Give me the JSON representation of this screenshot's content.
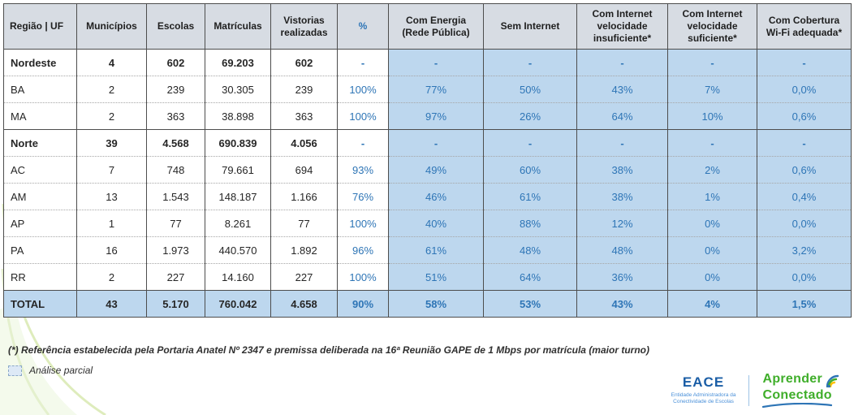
{
  "table": {
    "headers": [
      "Região | UF",
      "Municípios",
      "Escolas",
      "Matrículas",
      "Vistorias realizadas",
      "%",
      "Com Energia (Rede Pública)",
      "Sem Internet",
      "Com Internet velocidade insuficiente*",
      "Com Internet velocidade suficiente*",
      "Com Cobertura Wi-Fi adequada*"
    ],
    "rows": [
      {
        "type": "region",
        "cells": [
          "Nordeste",
          "4",
          "602",
          "69.203",
          "602",
          "-",
          "-",
          "-",
          "-",
          "-",
          "-"
        ]
      },
      {
        "type": "uf",
        "cells": [
          "BA",
          "2",
          "239",
          "30.305",
          "239",
          "100%",
          "77%",
          "50%",
          "43%",
          "7%",
          "0,0%"
        ]
      },
      {
        "type": "uf",
        "cells": [
          "MA",
          "2",
          "363",
          "38.898",
          "363",
          "100%",
          "97%",
          "26%",
          "64%",
          "10%",
          "0,6%"
        ]
      },
      {
        "type": "region",
        "cells": [
          "Norte",
          "39",
          "4.568",
          "690.839",
          "4.056",
          "-",
          "-",
          "-",
          "-",
          "-",
          "-"
        ]
      },
      {
        "type": "uf",
        "cells": [
          "AC",
          "7",
          "748",
          "79.661",
          "694",
          "93%",
          "49%",
          "60%",
          "38%",
          "2%",
          "0,6%"
        ]
      },
      {
        "type": "uf",
        "cells": [
          "AM",
          "13",
          "1.543",
          "148.187",
          "1.166",
          "76%",
          "46%",
          "61%",
          "38%",
          "1%",
          "0,4%"
        ]
      },
      {
        "type": "uf",
        "cells": [
          "AP",
          "1",
          "77",
          "8.261",
          "77",
          "100%",
          "40%",
          "88%",
          "12%",
          "0%",
          "0,0%"
        ]
      },
      {
        "type": "uf",
        "cells": [
          "PA",
          "16",
          "1.973",
          "440.570",
          "1.892",
          "96%",
          "61%",
          "48%",
          "48%",
          "0%",
          "3,2%"
        ]
      },
      {
        "type": "uf",
        "cells": [
          "RR",
          "2",
          "227",
          "14.160",
          "227",
          "100%",
          "51%",
          "64%",
          "36%",
          "0%",
          "0,0%"
        ]
      },
      {
        "type": "total",
        "cells": [
          "TOTAL",
          "43",
          "5.170",
          "760.042",
          "4.658",
          "90%",
          "58%",
          "53%",
          "43%",
          "4%",
          "1,5%"
        ]
      }
    ]
  },
  "footnote": "(*) Referência estabelecida pela Portaria Anatel Nº 2347 e premissa deliberada na 16ª Reunião GAPE de 1 Mbps por matrícula (maior turno)",
  "legend": {
    "label": "Análise parcial"
  },
  "logos": {
    "eace_title": "EACE",
    "eace_subtitle_line1": "Entidade Administradora da",
    "eace_subtitle_line2": "Conectividade de Escolas",
    "aprender_line1": "Aprender",
    "aprender_line2": "Conectado"
  },
  "colors": {
    "header_bg": "#d7dce3",
    "highlight_bg": "#bdd7ee",
    "accent_blue": "#2e75b6",
    "logo_green": "#3fae2a",
    "watermark_green": "#b5d56a"
  }
}
